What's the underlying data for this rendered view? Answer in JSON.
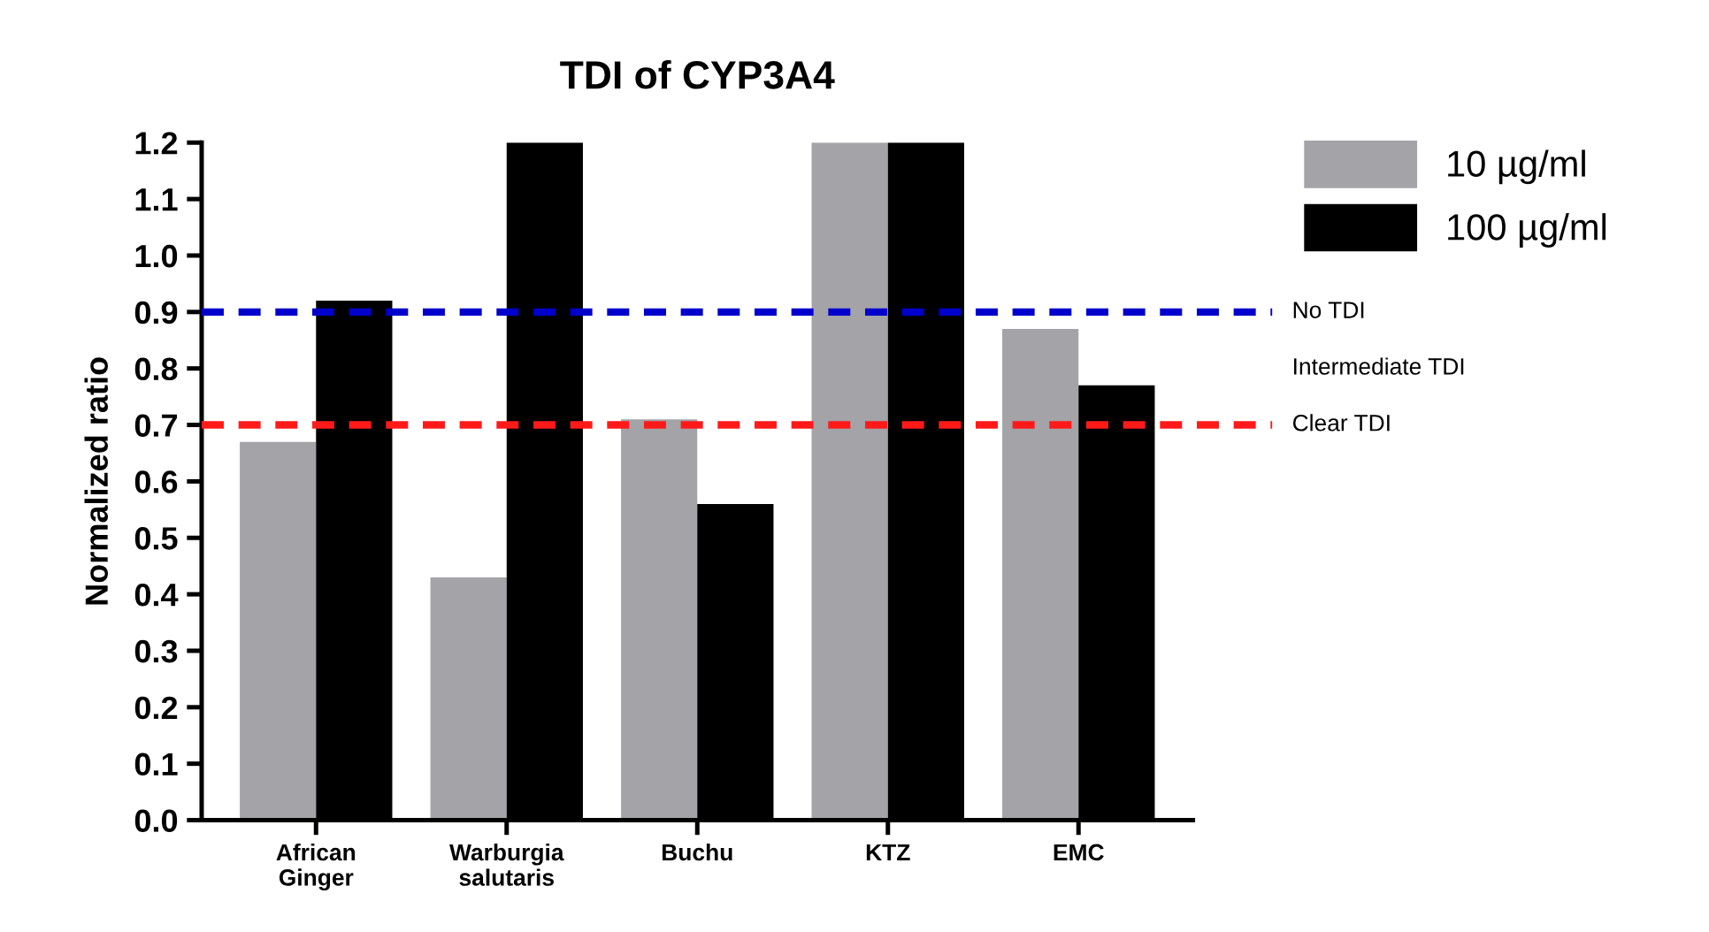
{
  "chart_data": {
    "type": "bar",
    "title": "TDI of CYP3A4",
    "ylabel": "Normalized ratio",
    "categories": [
      "African\nGinger",
      "Warburgia\nsalutaris",
      "Buchu",
      "KTZ",
      "EMC"
    ],
    "series": [
      {
        "name": "10 µg/ml",
        "color": "#a3a3a8",
        "values": [
          0.67,
          0.43,
          0.71,
          1.2,
          0.87
        ]
      },
      {
        "name": "100 µg/ml",
        "color": "#000000",
        "values": [
          0.92,
          1.2,
          0.56,
          1.2,
          0.77
        ]
      }
    ],
    "ylim": [
      0,
      1.2
    ],
    "yticks": [
      {
        "value": 0,
        "label": "0.0"
      },
      {
        "value": 0.1,
        "label": "0.1"
      },
      {
        "value": 0.2,
        "label": "0.2"
      },
      {
        "value": 0.3,
        "label": "0.3"
      },
      {
        "value": 0.4,
        "label": "0.4"
      },
      {
        "value": 0.5,
        "label": "0.5"
      },
      {
        "value": 0.6,
        "label": "0.6"
      },
      {
        "value": 0.7,
        "label": "0.7"
      },
      {
        "value": 0.8,
        "label": "0.8"
      },
      {
        "value": 0.9,
        "label": "0.9"
      },
      {
        "value": 1.0,
        "label": "1.0"
      },
      {
        "value": 1.1,
        "label": "1.1"
      },
      {
        "value": 1.2,
        "label": "1.2"
      }
    ],
    "ref_lines": [
      {
        "axis": "y",
        "value": 0.9,
        "label": "No TDI",
        "color": "#0000cc",
        "line_style": "dashed"
      },
      {
        "axis": "y",
        "value": 0.7,
        "label": "Clear TDI",
        "color": "#ff1a1a",
        "line_style": "dashed"
      }
    ],
    "annotations": [
      "Intermediate TDI"
    ],
    "legend": "top right",
    "grid": false
  }
}
